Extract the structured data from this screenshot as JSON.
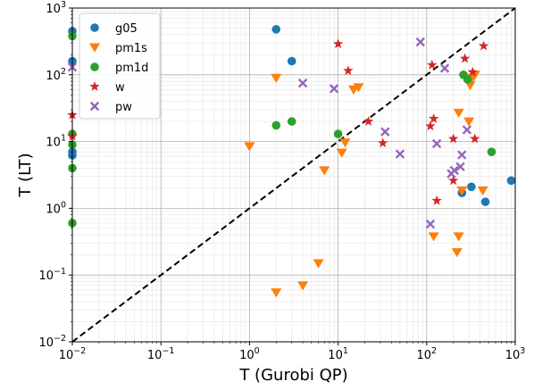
{
  "chart_data": {
    "type": "scatter",
    "xlabel": "T (Gurobi QP)",
    "ylabel": "T (LT)",
    "xscale": "log",
    "yscale": "log",
    "xlim": [
      0.01,
      1000
    ],
    "ylim": [
      0.01,
      1000
    ],
    "grid": true,
    "legend_position": "top-left",
    "x_ticks": [
      "10^-2",
      "10^-1",
      "10^0",
      "10^1",
      "10^2",
      "10^3"
    ],
    "y_ticks": [
      "10^-2",
      "10^-1",
      "10^0",
      "10^1",
      "10^2",
      "10^3"
    ],
    "reference_line": {
      "style": "dashed",
      "color": "#000000",
      "from": [
        0.01,
        0.01
      ],
      "to": [
        1000,
        1000
      ]
    },
    "series": [
      {
        "name": "g05",
        "marker": "circle",
        "color": "#1f77b4",
        "points": [
          [
            0.01,
            450
          ],
          [
            0.01,
            160
          ],
          [
            0.01,
            7
          ],
          [
            0.01,
            6.2
          ],
          [
            2,
            480
          ],
          [
            3,
            160
          ],
          [
            250,
            1.7
          ],
          [
            320,
            2.1
          ],
          [
            460,
            1.25
          ],
          [
            900,
            2.6
          ]
        ]
      },
      {
        "name": "pm1s",
        "marker": "triangle-down",
        "color": "#ff7f0e",
        "points": [
          [
            1,
            8.5
          ],
          [
            2,
            90
          ],
          [
            2,
            0.055
          ],
          [
            4,
            0.07
          ],
          [
            6,
            0.15
          ],
          [
            7,
            3.7
          ],
          [
            11,
            6.8
          ],
          [
            12,
            9.7
          ],
          [
            15,
            60
          ],
          [
            17,
            65
          ],
          [
            120,
            0.38
          ],
          [
            220,
            0.22
          ],
          [
            230,
            0.38
          ],
          [
            230,
            27
          ],
          [
            250,
            1.85
          ],
          [
            300,
            20
          ],
          [
            310,
            70
          ],
          [
            330,
            90
          ],
          [
            350,
            100
          ],
          [
            430,
            1.85
          ]
        ]
      },
      {
        "name": "pm1d",
        "marker": "circle",
        "color": "#2ca02c",
        "points": [
          [
            0.01,
            380
          ],
          [
            0.01,
            13
          ],
          [
            0.01,
            9
          ],
          [
            0.01,
            4
          ],
          [
            0.01,
            0.6
          ],
          [
            2,
            17.5
          ],
          [
            3,
            20
          ],
          [
            10,
            13
          ],
          [
            260,
            100
          ],
          [
            290,
            85
          ],
          [
            540,
            7
          ]
        ]
      },
      {
        "name": "w",
        "marker": "star",
        "color": "#d62728",
        "points": [
          [
            0.01,
            25
          ],
          [
            0.01,
            12
          ],
          [
            10,
            290
          ],
          [
            13,
            115
          ],
          [
            22,
            20
          ],
          [
            32,
            9.5
          ],
          [
            110,
            17
          ],
          [
            115,
            140
          ],
          [
            120,
            22
          ],
          [
            130,
            1.3
          ],
          [
            200,
            11
          ],
          [
            200,
            2.6
          ],
          [
            270,
            175
          ],
          [
            330,
            110
          ],
          [
            350,
            11
          ],
          [
            440,
            270
          ]
        ]
      },
      {
        "name": "pw",
        "marker": "x",
        "color": "#9467bd",
        "points": [
          [
            0.01,
            130
          ],
          [
            4,
            75
          ],
          [
            9,
            62
          ],
          [
            34,
            14
          ],
          [
            50,
            6.5
          ],
          [
            85,
            310
          ],
          [
            110,
            0.58
          ],
          [
            130,
            9.3
          ],
          [
            160,
            125
          ],
          [
            190,
            3.3
          ],
          [
            205,
            3.7
          ],
          [
            240,
            4.2
          ],
          [
            250,
            6.3
          ],
          [
            285,
            15
          ]
        ]
      }
    ]
  }
}
